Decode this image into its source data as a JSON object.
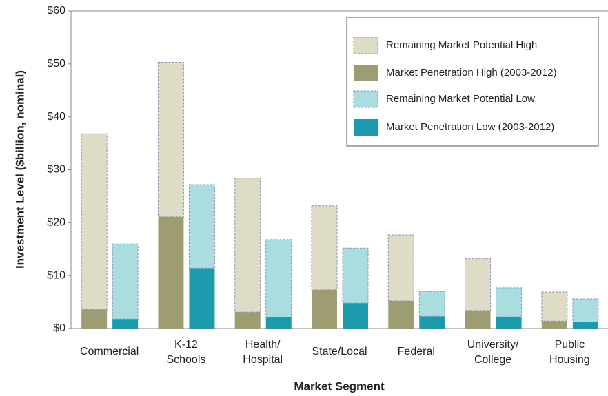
{
  "chart_data": {
    "type": "bar",
    "xlabel": "Market Segment",
    "ylabel": "Investment Level ($billion, nominal)",
    "categories": [
      "Commercial",
      "K-12 Schools",
      "Health/ Hospital",
      "State/Local",
      "Federal",
      "University/ College",
      "Public Housing"
    ],
    "series": [
      {
        "name": "Remaining Market Potential High",
        "color": "#dedcc6",
        "values": [
          33.2,
          29.2,
          25.3,
          15.9,
          12.5,
          9.8,
          5.5
        ]
      },
      {
        "name": "Market Penetration High (2003-2012)",
        "color": "#9d9c72",
        "values": [
          3.6,
          21.1,
          3.1,
          7.3,
          5.2,
          3.4,
          1.4
        ]
      },
      {
        "name": "Remaining Market Potential Low",
        "color": "#aadde0",
        "values": [
          14.2,
          15.8,
          14.7,
          10.4,
          4.7,
          5.5,
          4.4
        ]
      },
      {
        "name": "Market Penetration Low (2003-2012)",
        "color": "#1a9aab",
        "values": [
          1.8,
          11.4,
          2.1,
          4.8,
          2.3,
          2.2,
          1.2
        ]
      }
    ],
    "ylim": [
      0,
      60
    ],
    "yticks": [
      {
        "value": 0,
        "label": "$0"
      },
      {
        "value": 10,
        "label": "$10"
      },
      {
        "value": 20,
        "label": "$20"
      },
      {
        "value": 30,
        "label": "$30"
      },
      {
        "value": 40,
        "label": "$40"
      },
      {
        "value": 50,
        "label": "$50"
      },
      {
        "value": 60,
        "label": "$60"
      }
    ],
    "legend": "upper right"
  }
}
